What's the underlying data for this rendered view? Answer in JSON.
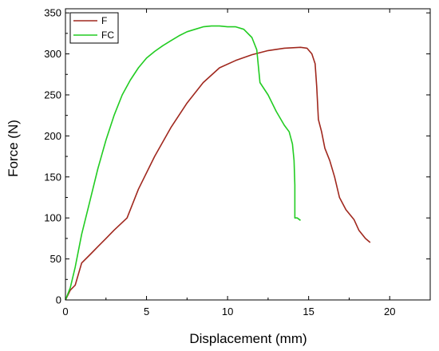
{
  "chart_data": {
    "type": "line",
    "xlabel": "Displacement (mm)",
    "ylabel": "Force (N)",
    "xlim": [
      0,
      22.5
    ],
    "ylim": [
      0,
      355
    ],
    "xticks": [
      0,
      5,
      10,
      15,
      20
    ],
    "yticks": [
      0,
      50,
      100,
      150,
      200,
      250,
      300,
      350
    ],
    "legend_position": "top-left",
    "grid": false,
    "series": [
      {
        "name": "F",
        "color": "#a0281e",
        "points": [
          [
            0,
            0
          ],
          [
            0.3,
            12
          ],
          [
            0.6,
            18
          ],
          [
            1.0,
            45
          ],
          [
            1.5,
            55
          ],
          [
            2.0,
            65
          ],
          [
            2.5,
            75
          ],
          [
            3.0,
            85
          ],
          [
            3.8,
            100
          ],
          [
            4.5,
            135
          ],
          [
            5.5,
            175
          ],
          [
            6.5,
            210
          ],
          [
            7.5,
            240
          ],
          [
            8.5,
            265
          ],
          [
            9.5,
            283
          ],
          [
            10.5,
            292
          ],
          [
            11.5,
            299
          ],
          [
            12.5,
            304
          ],
          [
            13.5,
            307
          ],
          [
            14.5,
            308
          ],
          [
            14.9,
            307
          ],
          [
            15.2,
            300
          ],
          [
            15.4,
            288
          ],
          [
            15.5,
            260
          ],
          [
            15.6,
            220
          ],
          [
            15.8,
            205
          ],
          [
            16.0,
            185
          ],
          [
            16.3,
            170
          ],
          [
            16.6,
            150
          ],
          [
            16.9,
            125
          ],
          [
            17.3,
            110
          ],
          [
            17.8,
            98
          ],
          [
            18.1,
            85
          ],
          [
            18.5,
            75
          ],
          [
            18.8,
            70
          ]
        ]
      },
      {
        "name": "FC",
        "color": "#22cc22",
        "points": [
          [
            0,
            0
          ],
          [
            0.3,
            15
          ],
          [
            0.6,
            40
          ],
          [
            1.0,
            80
          ],
          [
            1.5,
            120
          ],
          [
            2.0,
            160
          ],
          [
            2.5,
            195
          ],
          [
            3.0,
            225
          ],
          [
            3.5,
            250
          ],
          [
            4.0,
            268
          ],
          [
            4.5,
            283
          ],
          [
            5.0,
            295
          ],
          [
            5.5,
            303
          ],
          [
            6.0,
            310
          ],
          [
            6.5,
            316
          ],
          [
            7.0,
            322
          ],
          [
            7.5,
            327
          ],
          [
            8.0,
            330
          ],
          [
            8.5,
            333
          ],
          [
            9.0,
            334
          ],
          [
            9.5,
            334
          ],
          [
            10.0,
            333
          ],
          [
            10.5,
            333
          ],
          [
            11.0,
            330
          ],
          [
            11.5,
            320
          ],
          [
            11.8,
            305
          ],
          [
            11.9,
            285
          ],
          [
            12.0,
            265
          ],
          [
            12.5,
            250
          ],
          [
            13.0,
            230
          ],
          [
            13.5,
            213
          ],
          [
            13.8,
            205
          ],
          [
            14.0,
            190
          ],
          [
            14.1,
            170
          ],
          [
            14.15,
            140
          ],
          [
            14.15,
            100
          ],
          [
            14.3,
            100
          ],
          [
            14.5,
            97
          ]
        ]
      }
    ]
  }
}
